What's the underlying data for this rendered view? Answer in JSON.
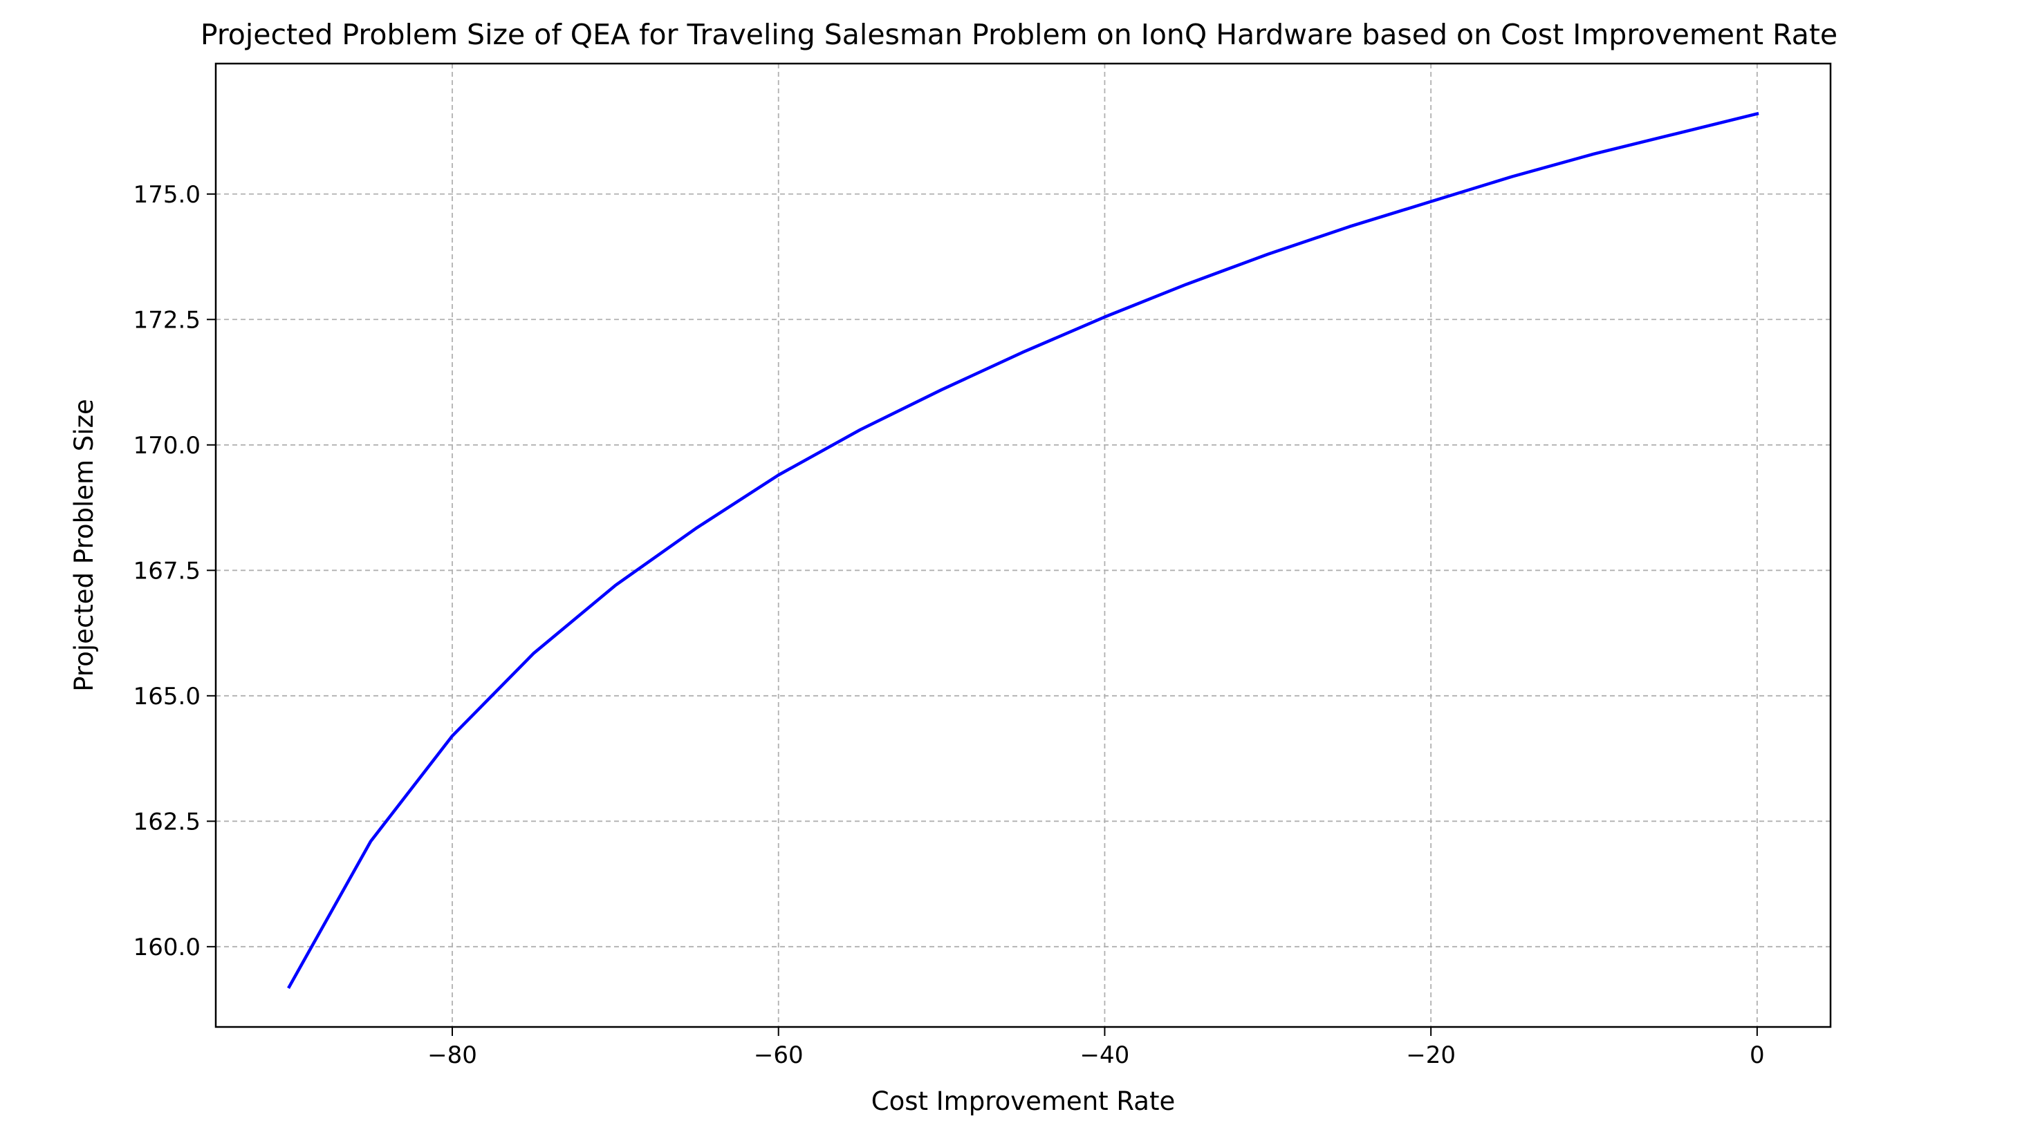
{
  "chart_data": {
    "type": "line",
    "title": "Projected Problem Size of QEA for Traveling Salesman Problem on IonQ Hardware based on Cost Improvement Rate",
    "xlabel": "Cost Improvement Rate",
    "ylabel": "Projected Problem Size",
    "xlim": [
      -94.5,
      4.5
    ],
    "ylim": [
      158.4,
      177.6
    ],
    "xticks": [
      -80,
      -60,
      -40,
      -20,
      0
    ],
    "xtick_labels": [
      "−80",
      "−60",
      "−40",
      "−20",
      "0"
    ],
    "yticks": [
      160.0,
      162.5,
      165.0,
      167.5,
      170.0,
      172.5,
      175.0
    ],
    "ytick_labels": [
      "160.0",
      "162.5",
      "165.0",
      "167.5",
      "170.0",
      "172.5",
      "175.0"
    ],
    "grid": true,
    "series": [
      {
        "color": "#0000ff",
        "x": [
          -90,
          -85,
          -80,
          -75,
          -70,
          -65,
          -60,
          -55,
          -50,
          -45,
          -40,
          -35,
          -30,
          -25,
          -20,
          -15,
          -10,
          -5,
          0
        ],
        "y": [
          159.2,
          162.1,
          164.2,
          165.85,
          167.2,
          168.35,
          169.4,
          170.3,
          171.1,
          171.85,
          172.55,
          173.2,
          173.8,
          174.35,
          174.85,
          175.35,
          175.8,
          176.2,
          176.6
        ]
      }
    ]
  }
}
